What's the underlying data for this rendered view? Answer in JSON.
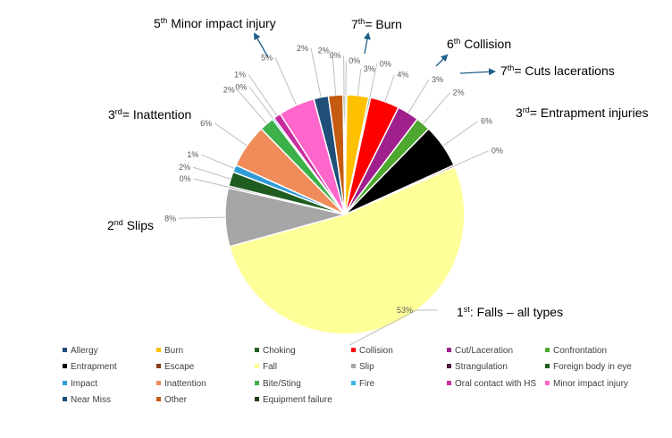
{
  "chart_data": {
    "type": "pie",
    "title": "",
    "legend_position": "bottom",
    "slices": [
      {
        "name": "Allergy",
        "value": 0,
        "label": "0%",
        "color": "#1F4E79"
      },
      {
        "name": "Burn",
        "value": 3,
        "label": "3%",
        "color": "#FFC000"
      },
      {
        "name": "Choking",
        "value": 0,
        "label": "0%",
        "color": "#255E23"
      },
      {
        "name": "Collision",
        "value": 4,
        "label": "4%",
        "color": "#FF0000"
      },
      {
        "name": "Cut/Laceration",
        "value": 3,
        "label": "3%",
        "color": "#A0208E"
      },
      {
        "name": "Confrontation",
        "value": 2,
        "label": "2%",
        "color": "#4EA72E"
      },
      {
        "name": "Entrapment",
        "value": 6,
        "label": "6%",
        "color": "#000000"
      },
      {
        "name": "Escape",
        "value": 0,
        "label": "0%",
        "color": "#8B3A1A"
      },
      {
        "name": "Fall",
        "value": 53,
        "label": "53%",
        "color": "#FFFF99"
      },
      {
        "name": "Slip",
        "value": 8,
        "label": "8%",
        "color": "#A6A6A6"
      },
      {
        "name": "Strangulation",
        "value": 0,
        "label": "0%",
        "color": "#4D1A3F"
      },
      {
        "name": "Foreign body in eye",
        "value": 2,
        "label": "2%",
        "color": "#1E5C20"
      },
      {
        "name": "Impact",
        "value": 1,
        "label": "1%",
        "color": "#2E9BD6"
      },
      {
        "name": "Inattention",
        "value": 6,
        "label": "6%",
        "color": "#F08C5A"
      },
      {
        "name": "Bite/Sting",
        "value": 2,
        "label": "2%",
        "color": "#3CB14A"
      },
      {
        "name": "Fire",
        "value": 0,
        "label": "0%",
        "color": "#3BB4E5"
      },
      {
        "name": "Oral contact with HS",
        "value": 1,
        "label": "1%",
        "color": "#C72C9E"
      },
      {
        "name": "Minor impact injury",
        "value": 5,
        "label": "5%",
        "color": "#FF66CC"
      },
      {
        "name": "Near Miss",
        "value": 2,
        "label": "2%",
        "color": "#1F4E79"
      },
      {
        "name": "Other",
        "value": 2,
        "label": "2%",
        "color": "#C55A11"
      },
      {
        "name": "Equipment failure",
        "value": 0,
        "label": "0%",
        "color": "#1F3D10"
      }
    ],
    "annotations": [
      {
        "id": "burn",
        "pre": "7",
        "sup": "th",
        "post": "= Burn",
        "arrow": true
      },
      {
        "id": "collision",
        "pre": "6",
        "sup": "th",
        "post": " Collision",
        "arrow": true
      },
      {
        "id": "cuts",
        "pre": "7",
        "sup": "th",
        "post": "= Cuts lacerations",
        "arrow": true
      },
      {
        "id": "entrapment",
        "pre": "3",
        "sup": "rd",
        "post": "= Entrapment injuries",
        "arrow": false
      },
      {
        "id": "falls",
        "pre": "1",
        "sup": "st",
        "post": ": Falls – all types",
        "arrow": false
      },
      {
        "id": "slips",
        "pre": "2",
        "sup": "nd",
        "post": " Slips",
        "arrow": false
      },
      {
        "id": "inattention",
        "pre": "3",
        "sup": "rd",
        "post": "= Inattention",
        "arrow": false
      },
      {
        "id": "minor",
        "pre": "5",
        "sup": "th",
        "post": " Minor impact injury",
        "arrow": true
      }
    ],
    "colors": {
      "arrow": "#1F5E8A",
      "leader": "#BFBFBF"
    }
  }
}
